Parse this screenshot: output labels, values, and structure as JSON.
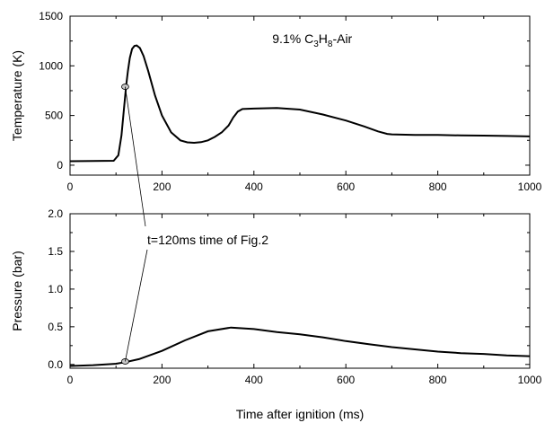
{
  "chart_data": [
    {
      "type": "line",
      "id": "temperature",
      "ylabel": "Temperature (K)",
      "xlabel": "",
      "xlim": [
        0,
        1000
      ],
      "ylim": [
        -100,
        1500
      ],
      "xticks": [
        0,
        200,
        400,
        600,
        800,
        1000
      ],
      "yticks": [
        0,
        500,
        1000,
        1500
      ],
      "grid": false,
      "annotation": {
        "prefix": "9.1%  C",
        "sub1": "3",
        "mid": "H",
        "sub2": "8",
        "suffix": "-Air"
      },
      "series": [
        {
          "x": [
            0,
            50,
            95,
            105,
            112,
            118,
            122,
            126,
            130,
            135,
            140,
            145,
            152,
            160,
            170,
            185,
            200,
            220,
            240,
            255,
            270,
            285,
            300,
            315,
            330,
            345,
            355,
            365,
            375,
            400,
            450,
            500,
            550,
            600,
            640,
            670,
            690,
            700,
            750,
            800,
            850,
            900,
            950,
            1000
          ],
          "y": [
            40,
            42,
            45,
            100,
            300,
            600,
            800,
            950,
            1080,
            1170,
            1200,
            1205,
            1180,
            1100,
            950,
            700,
            500,
            330,
            250,
            230,
            225,
            232,
            250,
            285,
            330,
            400,
            480,
            540,
            565,
            570,
            575,
            560,
            510,
            450,
            390,
            340,
            315,
            310,
            305,
            305,
            300,
            298,
            294,
            290
          ],
          "color": "#000000"
        }
      ],
      "marker": {
        "x": 120,
        "y": 790
      }
    },
    {
      "type": "line",
      "id": "pressure",
      "ylabel": "Pressure (bar)",
      "xlabel": "Time after ignition (ms)",
      "xlim": [
        0,
        1000
      ],
      "ylim": [
        -0.05,
        2.0
      ],
      "xticks": [
        0,
        200,
        400,
        600,
        800,
        1000
      ],
      "yticks": [
        0.0,
        0.5,
        1.0,
        1.5,
        2.0
      ],
      "grid": false,
      "series": [
        {
          "x": [
            0,
            50,
            100,
            120,
            150,
            200,
            250,
            300,
            350,
            400,
            450,
            500,
            550,
            600,
            650,
            700,
            750,
            800,
            850,
            900,
            950,
            1000
          ],
          "y": [
            -0.02,
            -0.01,
            0.01,
            0.03,
            0.07,
            0.18,
            0.32,
            0.44,
            0.49,
            0.47,
            0.43,
            0.4,
            0.36,
            0.31,
            0.27,
            0.23,
            0.2,
            0.17,
            0.15,
            0.14,
            0.12,
            0.11
          ],
          "color": "#000000"
        }
      ],
      "marker": {
        "x": 120,
        "y": 0.04
      }
    }
  ],
  "connector_annotation": "t=120ms time of Fig.2"
}
